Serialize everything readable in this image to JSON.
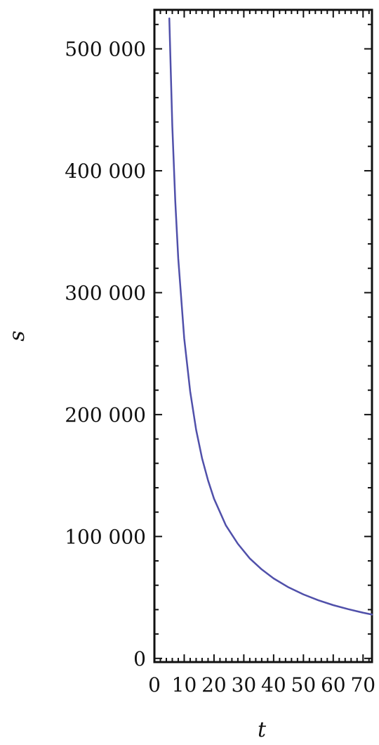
{
  "chart_data": {
    "type": "line",
    "title": "",
    "xlabel": "t",
    "ylabel": "s",
    "xlim": [
      0,
      73
    ],
    "ylim": [
      -3000,
      532000
    ],
    "x_ticks": [
      0,
      10,
      20,
      30,
      40,
      50,
      60,
      70
    ],
    "x_tick_labels": [
      "0",
      "10",
      "20",
      "30",
      "40",
      "50",
      "60",
      "70"
    ],
    "y_ticks": [
      0,
      100000,
      200000,
      300000,
      400000,
      500000
    ],
    "y_tick_labels": [
      "0",
      "100 000",
      "200 000",
      "300 000",
      "400 000",
      "500 000"
    ],
    "grid": false,
    "frame": true,
    "series": [
      {
        "color": "#5050aa",
        "x": [
          5,
          6,
          7,
          8,
          10,
          12,
          14,
          16,
          18,
          20,
          24,
          28,
          32,
          36,
          40,
          45,
          50,
          55,
          60,
          65,
          70,
          73
        ],
        "y": [
          525000,
          437000,
          375000,
          328000,
          262500,
          219000,
          187500,
          164000,
          146000,
          131000,
          109000,
          94000,
          82000,
          73000,
          65600,
          58300,
          52500,
          47700,
          43700,
          40400,
          37500,
          36000
        ]
      }
    ]
  }
}
